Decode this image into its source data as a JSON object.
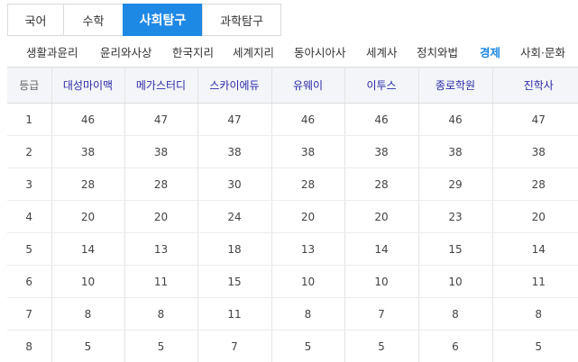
{
  "subject_tabs": [
    {
      "label": "국어"
    },
    {
      "label": "수학"
    },
    {
      "label": "사회탐구"
    },
    {
      "label": "과학탐구"
    }
  ],
  "active_subject": "사회탐구",
  "sub_tabs": [
    {
      "label": "생활과윤리"
    },
    {
      "label": "윤리와사상"
    },
    {
      "label": "한국지리"
    },
    {
      "label": "세계지리"
    },
    {
      "label": "동아시아사"
    },
    {
      "label": "세계사"
    },
    {
      "label": "정치와법"
    },
    {
      "label": "경제"
    },
    {
      "label": "사회·문화"
    }
  ],
  "active_sub_tab": "경제",
  "table": {
    "headers": [
      "등급",
      "대성마이맥",
      "메가스터디",
      "스카이에듀",
      "유웨이",
      "이투스",
      "종로학원",
      "진학사"
    ],
    "rows": [
      [
        "1",
        "46",
        "47",
        "47",
        "46",
        "46",
        "46",
        "47"
      ],
      [
        "2",
        "38",
        "38",
        "38",
        "38",
        "38",
        "38",
        "38"
      ],
      [
        "3",
        "28",
        "28",
        "30",
        "28",
        "28",
        "29",
        "28"
      ],
      [
        "4",
        "20",
        "20",
        "24",
        "20",
        "20",
        "23",
        "20"
      ],
      [
        "5",
        "14",
        "13",
        "18",
        "13",
        "14",
        "15",
        "14"
      ],
      [
        "6",
        "10",
        "11",
        "15",
        "10",
        "10",
        "10",
        "11"
      ],
      [
        "7",
        "8",
        "8",
        "11",
        "8",
        "7",
        "8",
        "8"
      ],
      [
        "8",
        "5",
        "5",
        "7",
        "5",
        "5",
        "6",
        "5"
      ]
    ]
  },
  "colors": {
    "accent": "#1e88e5",
    "header_text": "#2a2aa8",
    "header_bg": "#f3f5f8"
  }
}
